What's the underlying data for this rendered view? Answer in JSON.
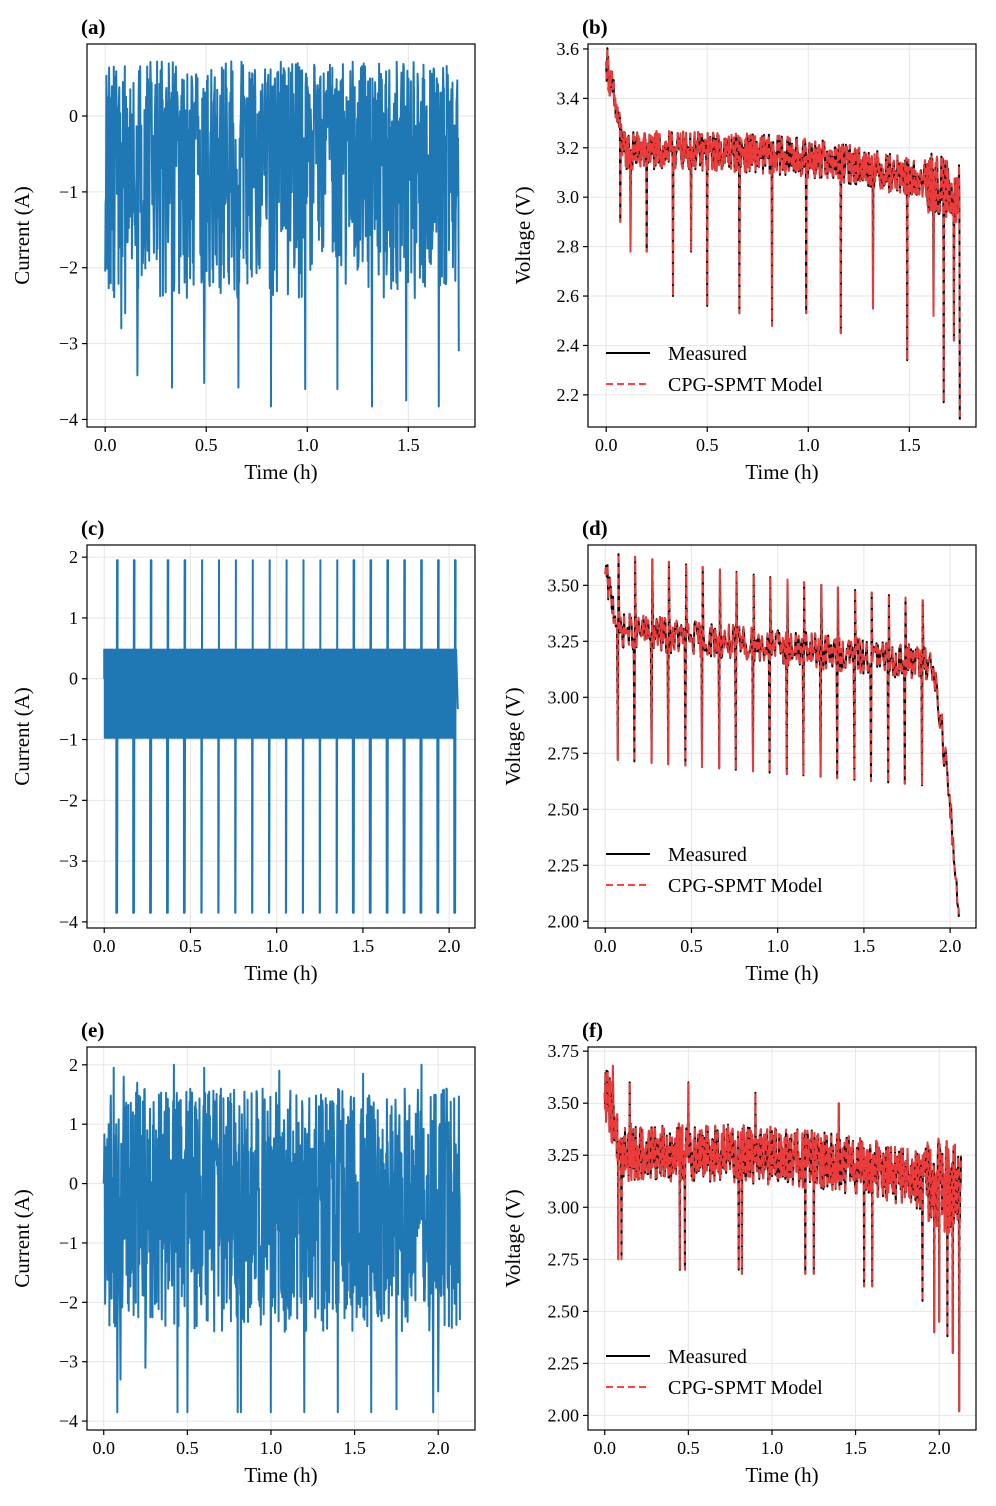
{
  "colors": {
    "current": "#1f77b4",
    "measured": "#000000",
    "model": "#ff4040",
    "grid": "#e6e6e6"
  },
  "chart_data": [
    {
      "id": "a",
      "panel_label": "(a)",
      "type": "line",
      "xlabel": "Time (h)",
      "ylabel": "Current (A)",
      "xlim": [
        -0.09,
        1.83
      ],
      "ylim": [
        -4.1,
        0.95
      ],
      "xticks": [
        0.0,
        0.5,
        1.0,
        1.5
      ],
      "xtick_labels": [
        "0.0",
        "0.5",
        "1.0",
        "1.5"
      ],
      "yticks": [
        0,
        -1,
        -2,
        -3,
        -4
      ],
      "ytick_labels": [
        "0",
        "−1",
        "−2",
        "−3",
        "−4"
      ],
      "legend": null,
      "series": [
        {
          "name": "Current",
          "color": "#1f77b4",
          "dash": false,
          "width": 2,
          "profile": {
            "kind": "random",
            "duration": 1.75,
            "base": -0.5,
            "min": -2.4,
            "max": 0.72,
            "n": 900,
            "spikes": [
              [
                0.0,
                -2.05
              ],
              [
                0.04,
                -2.3
              ],
              [
                0.08,
                -2.8
              ],
              [
                0.1,
                -2.6
              ],
              [
                0.16,
                -3.42
              ],
              [
                0.33,
                -3.58
              ],
              [
                0.49,
                -3.52
              ],
              [
                0.66,
                -3.58
              ],
              [
                0.82,
                -3.83
              ],
              [
                0.99,
                -3.6
              ],
              [
                1.15,
                -3.6
              ],
              [
                1.32,
                -3.83
              ],
              [
                1.49,
                -3.75
              ],
              [
                1.65,
                -3.83
              ],
              [
                1.75,
                -3.1
              ]
            ]
          }
        }
      ]
    },
    {
      "id": "b",
      "panel_label": "(b)",
      "type": "line",
      "xlabel": "Time (h)",
      "ylabel": "Voltage (V)",
      "xlim": [
        -0.09,
        1.83
      ],
      "ylim": [
        2.07,
        3.62
      ],
      "xticks": [
        0.0,
        0.5,
        1.0,
        1.5
      ],
      "xtick_labels": [
        "0.0",
        "0.5",
        "1.0",
        "1.5"
      ],
      "yticks": [
        2.2,
        2.4,
        2.6,
        2.8,
        3.0,
        3.2,
        3.4,
        3.6
      ],
      "ytick_labels": [
        "2.2",
        "2.4",
        "2.6",
        "2.8",
        "3.0",
        "3.2",
        "3.4",
        "3.6"
      ],
      "legend": {
        "position": "lower-left",
        "entries": [
          "Measured",
          "CPG-SPMT Model"
        ]
      },
      "series": [
        {
          "name": "Measured",
          "color": "#000000",
          "dash": false,
          "width": 2,
          "profile": {
            "kind": "voltage",
            "duration": 1.75,
            "start": 3.55,
            "mid": 3.18,
            "end_drop": 3.0,
            "tail": 0.1,
            "band": 0.16,
            "n": 900,
            "spikes": [
              [
                0.07,
                2.9
              ],
              [
                0.12,
                2.78
              ],
              [
                0.2,
                2.78
              ],
              [
                0.33,
                2.6
              ],
              [
                0.42,
                2.78
              ],
              [
                0.5,
                2.56
              ],
              [
                0.66,
                2.53
              ],
              [
                0.82,
                2.48
              ],
              [
                0.99,
                2.53
              ],
              [
                1.16,
                2.45
              ],
              [
                1.32,
                2.55
              ],
              [
                1.49,
                2.34
              ],
              [
                1.62,
                2.52
              ],
              [
                1.67,
                2.17
              ],
              [
                1.72,
                2.42
              ],
              [
                1.75,
                2.1
              ]
            ]
          }
        },
        {
          "name": "CPG-SPMT Model",
          "color": "#ff4040",
          "dash": true,
          "width": 2,
          "profile": {
            "kind": "voltage",
            "duration": 1.75,
            "start": 3.55,
            "mid": 3.18,
            "end_drop": 3.0,
            "tail": 0.1,
            "band": 0.16,
            "n": 900,
            "spikes": [
              [
                0.07,
                2.9
              ],
              [
                0.12,
                2.78
              ],
              [
                0.2,
                2.78
              ],
              [
                0.33,
                2.6
              ],
              [
                0.42,
                2.78
              ],
              [
                0.5,
                2.56
              ],
              [
                0.66,
                2.53
              ],
              [
                0.82,
                2.48
              ],
              [
                0.99,
                2.53
              ],
              [
                1.16,
                2.45
              ],
              [
                1.32,
                2.55
              ],
              [
                1.49,
                2.34
              ],
              [
                1.62,
                2.52
              ],
              [
                1.67,
                2.17
              ],
              [
                1.72,
                2.42
              ],
              [
                1.75,
                2.1
              ]
            ]
          }
        }
      ]
    },
    {
      "id": "c",
      "panel_label": "(c)",
      "type": "line",
      "xlabel": "Time (h)",
      "ylabel": "Current (A)",
      "xlim": [
        -0.1,
        2.15
      ],
      "ylim": [
        -4.1,
        2.2
      ],
      "xticks": [
        0.0,
        0.5,
        1.0,
        1.5,
        2.0
      ],
      "xtick_labels": [
        "0.0",
        "0.5",
        "1.0",
        "1.5",
        "2.0"
      ],
      "yticks": [
        2,
        1,
        0,
        -1,
        -2,
        -3,
        -4
      ],
      "ytick_labels": [
        "2",
        "1",
        "0",
        "−1",
        "−2",
        "−3",
        "−4"
      ],
      "legend": null,
      "series": [
        {
          "name": "Current",
          "color": "#1f77b4",
          "dash": false,
          "width": 2,
          "profile": {
            "kind": "periodic",
            "duration": 2.05,
            "period": 0.098,
            "first": 0.07,
            "high": 1.95,
            "low": -3.85,
            "square_hi": 0.48,
            "square_lo": -0.97
          }
        }
      ]
    },
    {
      "id": "d",
      "panel_label": "(d)",
      "type": "line",
      "xlabel": "Time (h)",
      "ylabel": "Voltage (V)",
      "xlim": [
        -0.1,
        2.15
      ],
      "ylim": [
        1.97,
        3.68
      ],
      "xticks": [
        0.0,
        0.5,
        1.0,
        1.5,
        2.0
      ],
      "xtick_labels": [
        "0.0",
        "0.5",
        "1.0",
        "1.5",
        "2.0"
      ],
      "yticks": [
        2.0,
        2.25,
        2.5,
        2.75,
        3.0,
        3.25,
        3.5
      ],
      "ytick_labels": [
        "2.00",
        "2.25",
        "2.50",
        "2.75",
        "3.00",
        "3.25",
        "3.50"
      ],
      "legend": {
        "position": "lower-left",
        "entries": [
          "Measured",
          "CPG-SPMT Model"
        ]
      },
      "series": [
        {
          "name": "Measured",
          "color": "#000000",
          "dash": false,
          "width": 2,
          "profile": {
            "kind": "periodicV",
            "duration": 2.05,
            "period": 0.098,
            "first": 0.07,
            "start": 3.55,
            "mid": 3.3,
            "late": 3.15,
            "peak_hi": 3.64,
            "peak_lo": 3.42,
            "dip_hi": 2.72,
            "dip_lo": 2.6,
            "end": 2.02
          }
        },
        {
          "name": "CPG-SPMT Model",
          "color": "#ff4040",
          "dash": true,
          "width": 2,
          "profile": {
            "kind": "periodicV",
            "duration": 2.05,
            "period": 0.098,
            "first": 0.07,
            "start": 3.55,
            "mid": 3.3,
            "late": 3.15,
            "peak_hi": 3.64,
            "peak_lo": 3.42,
            "dip_hi": 2.72,
            "dip_lo": 2.6,
            "end": 2.02
          }
        }
      ]
    },
    {
      "id": "e",
      "panel_label": "(e)",
      "type": "line",
      "xlabel": "Time (h)",
      "ylabel": "Current (A)",
      "xlim": [
        -0.1,
        2.22
      ],
      "ylim": [
        -4.15,
        2.3
      ],
      "xticks": [
        0.0,
        0.5,
        1.0,
        1.5,
        2.0
      ],
      "xtick_labels": [
        "0.0",
        "0.5",
        "1.0",
        "1.5",
        "2.0"
      ],
      "yticks": [
        2,
        1,
        0,
        -1,
        -2,
        -3,
        -4
      ],
      "ytick_labels": [
        "2",
        "1",
        "0",
        "−1",
        "−2",
        "−3",
        "−4"
      ],
      "legend": null,
      "series": [
        {
          "name": "Current",
          "color": "#1f77b4",
          "dash": false,
          "width": 2,
          "profile": {
            "kind": "random",
            "duration": 2.13,
            "base": -0.5,
            "min": -2.5,
            "max": 1.6,
            "n": 1000,
            "spikes": [
              [
                0.03,
                1.0
              ],
              [
                0.06,
                1.95
              ],
              [
                0.08,
                -3.85
              ],
              [
                0.1,
                -3.3
              ],
              [
                0.12,
                1.8
              ],
              [
                0.2,
                1.7
              ],
              [
                0.25,
                -3.1
              ],
              [
                0.33,
                1.5
              ],
              [
                0.42,
                2.0
              ],
              [
                0.44,
                -3.85
              ],
              [
                0.5,
                -3.85
              ],
              [
                0.6,
                1.95
              ],
              [
                0.7,
                1.6
              ],
              [
                0.8,
                -3.85
              ],
              [
                0.82,
                -3.85
              ],
              [
                0.95,
                1.6
              ],
              [
                1.0,
                -3.85
              ],
              [
                1.05,
                1.9
              ],
              [
                1.2,
                -3.85
              ],
              [
                1.3,
                1.5
              ],
              [
                1.4,
                -3.85
              ],
              [
                1.55,
                1.85
              ],
              [
                1.6,
                -3.85
              ],
              [
                1.75,
                -3.8
              ],
              [
                1.8,
                1.6
              ],
              [
                1.9,
                2.0
              ],
              [
                1.97,
                -3.85
              ],
              [
                2.0,
                -3.5
              ],
              [
                2.05,
                1.6
              ],
              [
                2.13,
                -2.3
              ]
            ]
          }
        }
      ]
    },
    {
      "id": "f",
      "panel_label": "(f)",
      "type": "line",
      "xlabel": "Time (h)",
      "ylabel": "Voltage (V)",
      "xlim": [
        -0.1,
        2.22
      ],
      "ylim": [
        1.93,
        3.77
      ],
      "xticks": [
        0.0,
        0.5,
        1.0,
        1.5,
        2.0
      ],
      "xtick_labels": [
        "0.0",
        "0.5",
        "1.0",
        "1.5",
        "2.0"
      ],
      "yticks": [
        2.0,
        2.25,
        2.5,
        2.75,
        3.0,
        3.25,
        3.5,
        3.75
      ],
      "ytick_labels": [
        "2.00",
        "2.25",
        "2.50",
        "2.75",
        "3.00",
        "3.25",
        "3.50",
        "3.75"
      ],
      "legend": {
        "position": "lower-left",
        "entries": [
          "Measured",
          "CPG-SPMT Model"
        ]
      },
      "series": [
        {
          "name": "Measured",
          "color": "#000000",
          "dash": false,
          "width": 2,
          "profile": {
            "kind": "voltage",
            "duration": 2.13,
            "start": 3.55,
            "mid": 3.25,
            "end_drop": 3.05,
            "tail": 0.14,
            "band": 0.28,
            "n": 1000,
            "spikes": [
              [
                0.03,
                3.62
              ],
              [
                0.05,
                3.68
              ],
              [
                0.08,
                2.75
              ],
              [
                0.1,
                2.75
              ],
              [
                0.15,
                3.6
              ],
              [
                0.45,
                2.7
              ],
              [
                0.48,
                2.7
              ],
              [
                0.5,
                3.6
              ],
              [
                0.8,
                2.7
              ],
              [
                0.82,
                2.68
              ],
              [
                0.9,
                3.55
              ],
              [
                1.2,
                2.68
              ],
              [
                1.25,
                2.68
              ],
              [
                1.4,
                3.5
              ],
              [
                1.55,
                2.62
              ],
              [
                1.6,
                2.62
              ],
              [
                1.9,
                2.55
              ],
              [
                1.97,
                2.4
              ],
              [
                2.0,
                2.45
              ],
              [
                2.05,
                2.38
              ],
              [
                2.08,
                2.3
              ],
              [
                2.12,
                2.02
              ]
            ]
          }
        },
        {
          "name": "CPG-SPMT Model",
          "color": "#ff4040",
          "dash": true,
          "width": 2,
          "profile": {
            "kind": "voltage",
            "duration": 2.13,
            "start": 3.55,
            "mid": 3.25,
            "end_drop": 3.05,
            "tail": 0.14,
            "band": 0.28,
            "n": 1000,
            "spikes": [
              [
                0.03,
                3.62
              ],
              [
                0.05,
                3.68
              ],
              [
                0.08,
                2.75
              ],
              [
                0.1,
                2.75
              ],
              [
                0.15,
                3.6
              ],
              [
                0.45,
                2.7
              ],
              [
                0.48,
                2.7
              ],
              [
                0.5,
                3.6
              ],
              [
                0.8,
                2.7
              ],
              [
                0.82,
                2.68
              ],
              [
                0.9,
                3.55
              ],
              [
                1.2,
                2.68
              ],
              [
                1.25,
                2.68
              ],
              [
                1.4,
                3.5
              ],
              [
                1.55,
                2.62
              ],
              [
                1.6,
                2.62
              ],
              [
                1.9,
                2.55
              ],
              [
                1.97,
                2.4
              ],
              [
                2.0,
                2.45
              ],
              [
                2.05,
                2.38
              ],
              [
                2.08,
                2.3
              ],
              [
                2.12,
                2.02
              ]
            ]
          }
        }
      ]
    }
  ]
}
